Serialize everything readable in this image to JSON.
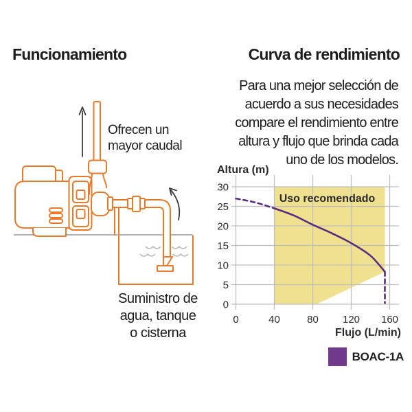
{
  "left_section": {
    "title": "Funcionamiento",
    "output_label": "Ofrecen un\nmayor caudal",
    "supply_label": "Suministro de\nagua, tanque\no cisterna"
  },
  "right_section": {
    "title": "Curva de rendimiento",
    "paragraph": "Para una mejor selección de\nacuerdo a sus necesidades\ncompare el rendimiento entre\naltura y flujo que brinda cada\nuno de los modelos."
  },
  "legend": {
    "label": "BOAC-1A",
    "color": "#71398b"
  },
  "colors": {
    "diagram_orange": "#e87a2a",
    "curve_purple": "#5b2b7f",
    "zone_yellow": "#efe18f",
    "gridline_gray": "#bfbfbf",
    "ground_gray": "#9b9b9b",
    "wave_gray": "#b5b5b5",
    "arrow_black": "#3a3a3a",
    "text_black": "#1d1d1b"
  },
  "chart_data": {
    "type": "line",
    "xlabel": "Flujo (L/min)",
    "ylabel": "Altura (m)",
    "x_ticks": [
      0,
      40,
      80,
      120,
      160
    ],
    "y_ticks": [
      0,
      5,
      10,
      15,
      20,
      25,
      30
    ],
    "xlim": [
      0,
      168
    ],
    "ylim": [
      0,
      33
    ],
    "grid": true,
    "legend_position": "bottom-right",
    "series": [
      {
        "name": "BOAC-1A",
        "color": "#5b2b7f",
        "segments": [
          {
            "style": "dashed",
            "points": [
              [
                0,
                27
              ],
              [
                20,
                26
              ],
              [
                40,
                24.5
              ]
            ]
          },
          {
            "style": "solid",
            "points": [
              [
                40,
                24.5
              ],
              [
                60,
                22.7
              ],
              [
                80,
                20.3
              ],
              [
                100,
                18.1
              ],
              [
                120,
                15.6
              ],
              [
                140,
                12.4
              ],
              [
                155,
                8.3
              ]
            ]
          },
          {
            "style": "dashed",
            "points": [
              [
                155,
                8.3
              ],
              [
                155,
                0.3
              ]
            ]
          }
        ]
      }
    ],
    "recommended_zone": {
      "label": "Uso recomendado",
      "color": "#efe18f",
      "polygon": [
        [
          40,
          0
        ],
        [
          84,
          0
        ],
        [
          155,
          8.3
        ],
        [
          155,
          30
        ],
        [
          40,
          30
        ]
      ],
      "label_pos": [
        95,
        27
      ]
    }
  }
}
